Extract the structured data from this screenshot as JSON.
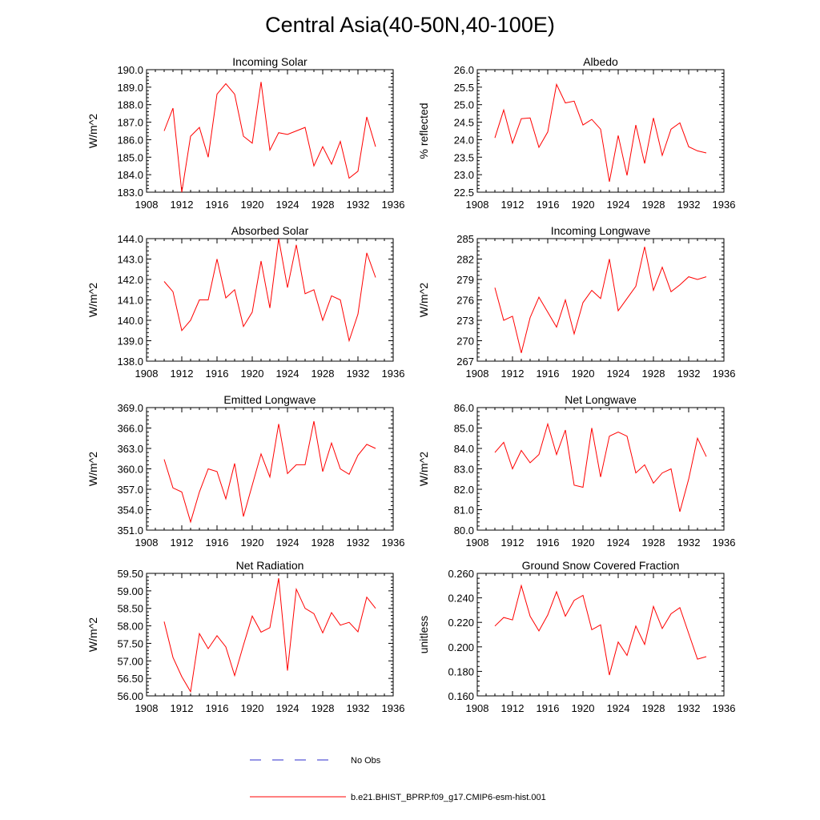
{
  "title": "Central Asia(40-50N,40-100E)",
  "colors": {
    "model": "#ff0000",
    "obs": "#2d2dcc",
    "axes": "#000000"
  },
  "legend": {
    "obs_label": "No Obs",
    "model_label": "b.e21.BHIST_BPRP.f09_g17.CMIP6-esm-hist.001"
  },
  "chart_data": [
    {
      "type": "line",
      "title": "Incoming Solar",
      "ylabel": "W/m^2",
      "xlim": [
        1908,
        1936
      ],
      "ylim": [
        183.0,
        190.0
      ],
      "xticks": [
        "1908",
        "1912",
        "1916",
        "1920",
        "1924",
        "1928",
        "1932",
        "1936"
      ],
      "yticks": [
        "183.0",
        "184.0",
        "185.0",
        "186.0",
        "187.0",
        "188.0",
        "189.0",
        "190.0"
      ],
      "series": [
        {
          "x": [
            1910,
            1911,
            1912,
            1913,
            1914,
            1915,
            1916,
            1917,
            1918,
            1919,
            1920,
            1921,
            1922,
            1923,
            1924,
            1925,
            1926,
            1927,
            1928,
            1929,
            1930,
            1931,
            1932,
            1933,
            1934
          ],
          "values": [
            186.5,
            187.8,
            183.0,
            186.2,
            186.7,
            185.0,
            188.6,
            189.2,
            188.6,
            186.2,
            185.8,
            189.3,
            185.4,
            186.4,
            186.3,
            186.5,
            186.7,
            184.5,
            185.6,
            184.6,
            185.9,
            183.8,
            184.2,
            187.3,
            185.6
          ]
        }
      ]
    },
    {
      "type": "line",
      "title": "Albedo",
      "ylabel": "% reflected",
      "xlim": [
        1908,
        1936
      ],
      "ylim": [
        22.5,
        26.0
      ],
      "xticks": [
        "1908",
        "1912",
        "1916",
        "1920",
        "1924",
        "1928",
        "1932",
        "1936"
      ],
      "yticks": [
        "22.5",
        "23.0",
        "23.5",
        "24.0",
        "24.5",
        "25.0",
        "25.5",
        "26.0"
      ],
      "series": [
        {
          "x": [
            1910,
            1911,
            1912,
            1913,
            1914,
            1915,
            1916,
            1917,
            1918,
            1919,
            1920,
            1921,
            1922,
            1923,
            1924,
            1925,
            1926,
            1927,
            1928,
            1929,
            1930,
            1931,
            1932,
            1933,
            1934
          ],
          "values": [
            24.05,
            24.85,
            23.9,
            24.6,
            24.62,
            23.78,
            24.22,
            25.58,
            25.05,
            25.1,
            24.42,
            24.58,
            24.3,
            22.8,
            24.12,
            22.98,
            24.42,
            23.32,
            24.62,
            23.55,
            24.3,
            24.48,
            23.8,
            23.68,
            23.62
          ]
        }
      ]
    },
    {
      "type": "line",
      "title": "Absorbed Solar",
      "ylabel": "W/m^2",
      "xlim": [
        1908,
        1936
      ],
      "ylim": [
        138.0,
        144.0
      ],
      "xticks": [
        "1908",
        "1912",
        "1916",
        "1920",
        "1924",
        "1928",
        "1932",
        "1936"
      ],
      "yticks": [
        "138.0",
        "139.0",
        "140.0",
        "141.0",
        "142.0",
        "143.0",
        "144.0"
      ],
      "series": [
        {
          "x": [
            1910,
            1911,
            1912,
            1913,
            1914,
            1915,
            1916,
            1917,
            1918,
            1919,
            1920,
            1921,
            1922,
            1923,
            1924,
            1925,
            1926,
            1927,
            1928,
            1929,
            1930,
            1931,
            1932,
            1933,
            1934
          ],
          "values": [
            141.9,
            141.4,
            139.5,
            140.0,
            141.0,
            141.0,
            143.0,
            141.1,
            141.5,
            139.7,
            140.4,
            142.9,
            140.6,
            144.0,
            141.6,
            143.7,
            141.3,
            141.5,
            140.0,
            141.2,
            141.0,
            139.0,
            140.3,
            143.3,
            142.1
          ]
        }
      ]
    },
    {
      "type": "line",
      "title": "Incoming Longwave",
      "ylabel": "W/m^2",
      "xlim": [
        1908,
        1936
      ],
      "ylim": [
        267,
        285
      ],
      "xticks": [
        "1908",
        "1912",
        "1916",
        "1920",
        "1924",
        "1928",
        "1932",
        "1936"
      ],
      "yticks": [
        "267",
        "270",
        "273",
        "276",
        "279",
        "282",
        "285"
      ],
      "series": [
        {
          "x": [
            1910,
            1911,
            1912,
            1913,
            1914,
            1915,
            1916,
            1917,
            1918,
            1919,
            1920,
            1921,
            1922,
            1923,
            1924,
            1925,
            1926,
            1927,
            1928,
            1929,
            1930,
            1931,
            1932,
            1933,
            1934
          ],
          "values": [
            277.8,
            273.0,
            273.6,
            268.2,
            273.4,
            276.4,
            274.2,
            272.0,
            276.0,
            271.0,
            275.6,
            277.4,
            276.2,
            282.0,
            274.4,
            276.2,
            278.0,
            283.8,
            277.4,
            280.8,
            277.2,
            278.2,
            279.4,
            279.0,
            279.4
          ]
        }
      ]
    },
    {
      "type": "line",
      "title": "Emitted Longwave",
      "ylabel": "W/m^2",
      "xlim": [
        1908,
        1936
      ],
      "ylim": [
        351.0,
        369.0
      ],
      "xticks": [
        "1908",
        "1912",
        "1916",
        "1920",
        "1924",
        "1928",
        "1932",
        "1936"
      ],
      "yticks": [
        "351.0",
        "354.0",
        "357.0",
        "360.0",
        "363.0",
        "366.0",
        "369.0"
      ],
      "series": [
        {
          "x": [
            1910,
            1911,
            1912,
            1913,
            1914,
            1915,
            1916,
            1917,
            1918,
            1919,
            1920,
            1921,
            1922,
            1923,
            1924,
            1925,
            1926,
            1927,
            1928,
            1929,
            1930,
            1931,
            1932,
            1933,
            1934
          ],
          "values": [
            361.4,
            357.2,
            356.6,
            352.2,
            356.6,
            360.0,
            359.6,
            355.6,
            360.8,
            353.0,
            357.6,
            362.2,
            358.8,
            366.6,
            359.3,
            360.6,
            360.6,
            367.0,
            359.6,
            363.8,
            360.0,
            359.2,
            362.0,
            363.6,
            363.0
          ]
        }
      ]
    },
    {
      "type": "line",
      "title": "Net Longwave",
      "ylabel": "W/m^2",
      "xlim": [
        1908,
        1936
      ],
      "ylim": [
        80.0,
        86.0
      ],
      "xticks": [
        "1908",
        "1912",
        "1916",
        "1920",
        "1924",
        "1928",
        "1932",
        "1936"
      ],
      "yticks": [
        "80.0",
        "81.0",
        "82.0",
        "83.0",
        "84.0",
        "85.0",
        "86.0"
      ],
      "series": [
        {
          "x": [
            1910,
            1911,
            1912,
            1913,
            1914,
            1915,
            1916,
            1917,
            1918,
            1919,
            1920,
            1921,
            1922,
            1923,
            1924,
            1925,
            1926,
            1927,
            1928,
            1929,
            1930,
            1931,
            1932,
            1933,
            1934
          ],
          "values": [
            83.8,
            84.3,
            83.0,
            83.9,
            83.3,
            83.7,
            85.2,
            83.7,
            84.9,
            82.2,
            82.1,
            85.0,
            82.6,
            84.6,
            84.8,
            84.6,
            82.8,
            83.2,
            82.3,
            82.8,
            83.0,
            80.9,
            82.5,
            84.5,
            83.6
          ]
        }
      ]
    },
    {
      "type": "line",
      "title": "Net Radiation",
      "ylabel": "W/m^2",
      "xlim": [
        1908,
        1936
      ],
      "ylim": [
        56.0,
        59.5
      ],
      "xticks": [
        "1908",
        "1912",
        "1916",
        "1920",
        "1924",
        "1928",
        "1932",
        "1936"
      ],
      "yticks": [
        "56.00",
        "56.50",
        "57.00",
        "57.50",
        "58.00",
        "58.50",
        "59.00",
        "59.50"
      ],
      "series": [
        {
          "x": [
            1910,
            1911,
            1912,
            1913,
            1914,
            1915,
            1916,
            1917,
            1918,
            1919,
            1920,
            1921,
            1922,
            1923,
            1924,
            1925,
            1926,
            1927,
            1928,
            1929,
            1930,
            1931,
            1932,
            1933,
            1934
          ],
          "values": [
            58.12,
            57.1,
            56.55,
            56.12,
            57.78,
            57.35,
            57.72,
            57.4,
            56.58,
            57.45,
            58.28,
            57.82,
            57.95,
            59.36,
            56.72,
            59.05,
            58.5,
            58.35,
            57.8,
            58.38,
            58.02,
            58.1,
            57.83,
            58.82,
            58.5
          ]
        }
      ]
    },
    {
      "type": "line",
      "title": "Ground Snow Covered Fraction",
      "ylabel": "unitless",
      "xlim": [
        1908,
        1936
      ],
      "ylim": [
        0.16,
        0.26
      ],
      "xticks": [
        "1908",
        "1912",
        "1916",
        "1920",
        "1924",
        "1928",
        "1932",
        "1936"
      ],
      "yticks": [
        "0.160",
        "0.180",
        "0.200",
        "0.220",
        "0.240",
        "0.260"
      ],
      "series": [
        {
          "x": [
            1910,
            1911,
            1912,
            1913,
            1914,
            1915,
            1916,
            1917,
            1918,
            1919,
            1920,
            1921,
            1922,
            1923,
            1924,
            1925,
            1926,
            1927,
            1928,
            1929,
            1930,
            1931,
            1932,
            1933,
            1934
          ],
          "values": [
            0.217,
            0.224,
            0.222,
            0.25,
            0.225,
            0.213,
            0.226,
            0.245,
            0.225,
            0.238,
            0.242,
            0.214,
            0.218,
            0.177,
            0.204,
            0.193,
            0.217,
            0.202,
            0.233,
            0.215,
            0.227,
            0.232,
            0.211,
            0.19,
            0.192
          ]
        }
      ]
    }
  ]
}
